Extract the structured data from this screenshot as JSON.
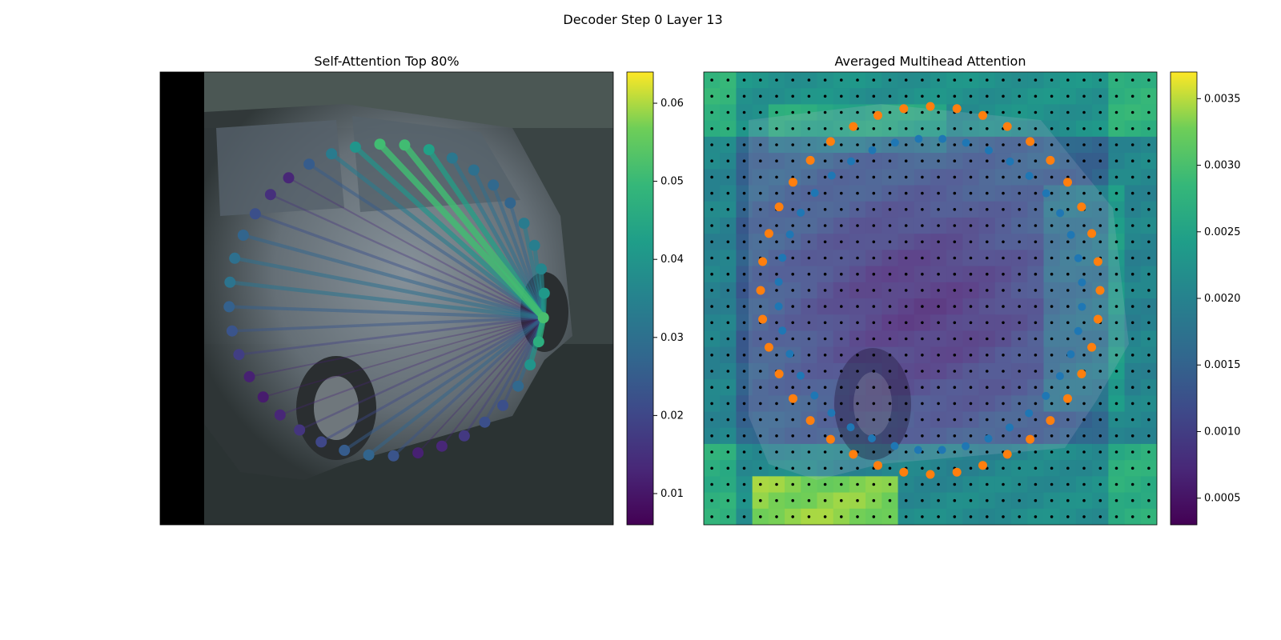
{
  "figure": {
    "suptitle": "Decoder Step 0 Layer 13"
  },
  "chart_data": [
    {
      "type": "heatmap",
      "title": "Self-Attention Top 80%",
      "description_note": "",
      "colorbar": {
        "colormap": "viridis",
        "min": 0.006,
        "max": 0.064,
        "ticks": [
          0.01,
          0.02,
          0.03,
          0.04,
          0.05,
          0.06
        ],
        "tick_labels": [
          "0.01",
          "0.02",
          "0.03",
          "0.04",
          "0.05",
          "0.06"
        ]
      },
      "contour_points": {
        "count": 40,
        "query_index": 12,
        "attention": [
          0.04,
          0.051,
          0.051,
          0.043,
          0.032,
          0.03,
          0.028,
          0.027,
          0.033,
          0.034,
          0.036,
          0.041,
          0.052,
          0.047,
          0.04,
          0.028,
          0.022,
          0.022,
          0.017,
          0.013,
          0.012,
          0.023,
          0.027,
          0.025,
          0.02,
          0.016,
          0.013,
          0.011,
          0.012,
          0.018,
          0.023,
          0.026,
          0.031,
          0.03,
          0.027,
          0.022,
          0.015,
          0.013,
          0.025,
          0.033
        ]
      }
    },
    {
      "type": "heatmap",
      "title": "Averaged Multihead Attention",
      "colorbar": {
        "colormap": "viridis",
        "min": 0.0003,
        "max": 0.0037,
        "ticks": [
          0.0005,
          0.001,
          0.0015,
          0.002,
          0.0025,
          0.003,
          0.0035
        ],
        "tick_labels": [
          "0.0005",
          "0.0010",
          "0.0015",
          "0.0020",
          "0.0025",
          "0.0030",
          "0.0035"
        ]
      },
      "grid": {
        "rows": 28,
        "cols": 28
      },
      "series": [
        {
          "color": "#ff7f0e",
          "count": 40
        },
        {
          "color": "#1f77b4",
          "count": 40
        },
        {
          "color": "#000000",
          "marker": "grid-dots"
        }
      ]
    }
  ]
}
